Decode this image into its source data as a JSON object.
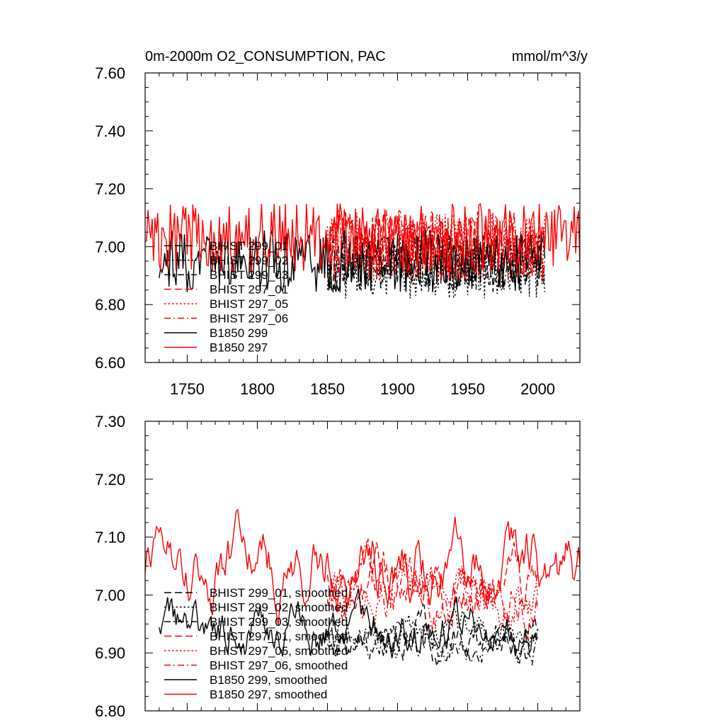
{
  "header": {
    "title": "0m-2000m O2_CONSUMPTION, PAC",
    "units": "mmol/m^3/y"
  },
  "colors": {
    "black": "#000000",
    "red": "#ff0000"
  },
  "chart_data": [
    {
      "type": "line",
      "xlim": [
        1720,
        2030
      ],
      "ylim": [
        6.6,
        7.6
      ],
      "x_ticks": [
        1750,
        1800,
        1850,
        1900,
        1950,
        2000
      ],
      "x_tick_labels": [
        "1750",
        "1800",
        "1850",
        "1900",
        "1950",
        "2000"
      ],
      "y_ticks": [
        6.6,
        6.8,
        7.0,
        7.2,
        7.4,
        7.6
      ],
      "y_tick_labels": [
        "6.60",
        "6.80",
        "7.00",
        "7.20",
        "7.40",
        "7.60"
      ],
      "legend_position": "bottom-left",
      "series": [
        {
          "name": "BHIST 299_01",
          "color": "#000000",
          "dash": "longdash",
          "start": 1850,
          "end": 2005,
          "seed": 11,
          "mean": 6.94,
          "amp": 0.1,
          "trend": [
            0.0,
            0.0
          ]
        },
        {
          "name": "BHIST 299_02",
          "color": "#000000",
          "dash": "dot",
          "start": 1850,
          "end": 2005,
          "seed": 12,
          "mean": 6.93,
          "amp": 0.11,
          "trend": [
            0.0,
            0.0
          ]
        },
        {
          "name": "BHIST 299_03",
          "color": "#000000",
          "dash": "dashdot",
          "start": 1850,
          "end": 2005,
          "seed": 13,
          "mean": 6.95,
          "amp": 0.1,
          "trend": [
            0.0,
            0.0
          ]
        },
        {
          "name": "BHIST 297_01",
          "color": "#ff0000",
          "dash": "longdash",
          "start": 1850,
          "end": 2005,
          "seed": 14,
          "mean": 7.0,
          "amp": 0.12,
          "trend": [
            0.0,
            0.0
          ]
        },
        {
          "name": "BHIST 297_05",
          "color": "#ff0000",
          "dash": "dot",
          "start": 1850,
          "end": 2005,
          "seed": 15,
          "mean": 7.0,
          "amp": 0.12,
          "trend": [
            0.0,
            0.0
          ]
        },
        {
          "name": "BHIST 297_06",
          "color": "#ff0000",
          "dash": "dashdot",
          "start": 1850,
          "end": 2005,
          "seed": 16,
          "mean": 7.01,
          "amp": 0.12,
          "trend": [
            0.0,
            0.0
          ]
        },
        {
          "name": "B1850 299",
          "color": "#000000",
          "dash": "solid",
          "start": 1730,
          "end": 2005,
          "seed": 17,
          "mean": 6.95,
          "amp": 0.11,
          "trend": [
            0.0,
            0.0
          ]
        },
        {
          "name": "B1850 297",
          "color": "#ff0000",
          "dash": "solid",
          "start": 1720,
          "end": 2030,
          "seed": 18,
          "mean": 7.03,
          "amp": 0.12,
          "trend": [
            0.0,
            0.0
          ]
        }
      ]
    },
    {
      "type": "line",
      "xlim": [
        1720,
        2030
      ],
      "ylim": [
        6.8,
        7.3
      ],
      "x_ticks": [
        1750,
        1800,
        1850,
        1900,
        1950,
        2000
      ],
      "y_ticks": [
        6.8,
        6.9,
        7.0,
        7.1,
        7.2,
        7.3
      ],
      "y_tick_labels": [
        "6.80",
        "6.90",
        "7.00",
        "7.10",
        "7.20",
        "7.30"
      ],
      "legend_position": "bottom-left",
      "series": [
        {
          "name": "BHIST 299_01, smoothed",
          "color": "#000000",
          "dash": "longdash",
          "start": 1850,
          "end": 2000,
          "seed": 21,
          "mean": 6.93,
          "amp": 0.04,
          "trend": [
            0.0,
            0.0
          ]
        },
        {
          "name": "BHIST 299_02, smoothed",
          "color": "#000000",
          "dash": "dot",
          "start": 1850,
          "end": 2000,
          "seed": 22,
          "mean": 6.94,
          "amp": 0.04,
          "trend": [
            0.0,
            0.0
          ]
        },
        {
          "name": "BHIST 299_03, smoothed",
          "color": "#000000",
          "dash": "dashdot",
          "start": 1850,
          "end": 2000,
          "seed": 23,
          "mean": 6.93,
          "amp": 0.04,
          "trend": [
            0.0,
            0.0
          ]
        },
        {
          "name": "BHIST 297_01, smoothed",
          "color": "#ff0000",
          "dash": "longdash",
          "start": 1850,
          "end": 2000,
          "seed": 24,
          "mean": 7.01,
          "amp": 0.06,
          "trend": [
            0.0,
            0.0
          ]
        },
        {
          "name": "BHIST 297_05, smoothed",
          "color": "#ff0000",
          "dash": "dot",
          "start": 1850,
          "end": 2000,
          "seed": 25,
          "mean": 7.01,
          "amp": 0.06,
          "trend": [
            0.0,
            0.0
          ]
        },
        {
          "name": "BHIST 297_06, smoothed",
          "color": "#ff0000",
          "dash": "dashdot",
          "start": 1850,
          "end": 2000,
          "seed": 26,
          "mean": 7.0,
          "amp": 0.06,
          "trend": [
            0.0,
            0.0
          ]
        },
        {
          "name": "B1850 299, smoothed",
          "color": "#000000",
          "dash": "solid",
          "start": 1730,
          "end": 2000,
          "seed": 27,
          "mean": 6.94,
          "amp": 0.05,
          "trend": [
            0.0,
            0.0
          ]
        },
        {
          "name": "B1850 297, smoothed",
          "color": "#ff0000",
          "dash": "solid",
          "start": 1718,
          "end": 2030,
          "seed": 28,
          "mean": 7.05,
          "amp": 0.07,
          "trend": [
            0.0,
            0.0
          ]
        }
      ]
    }
  ]
}
